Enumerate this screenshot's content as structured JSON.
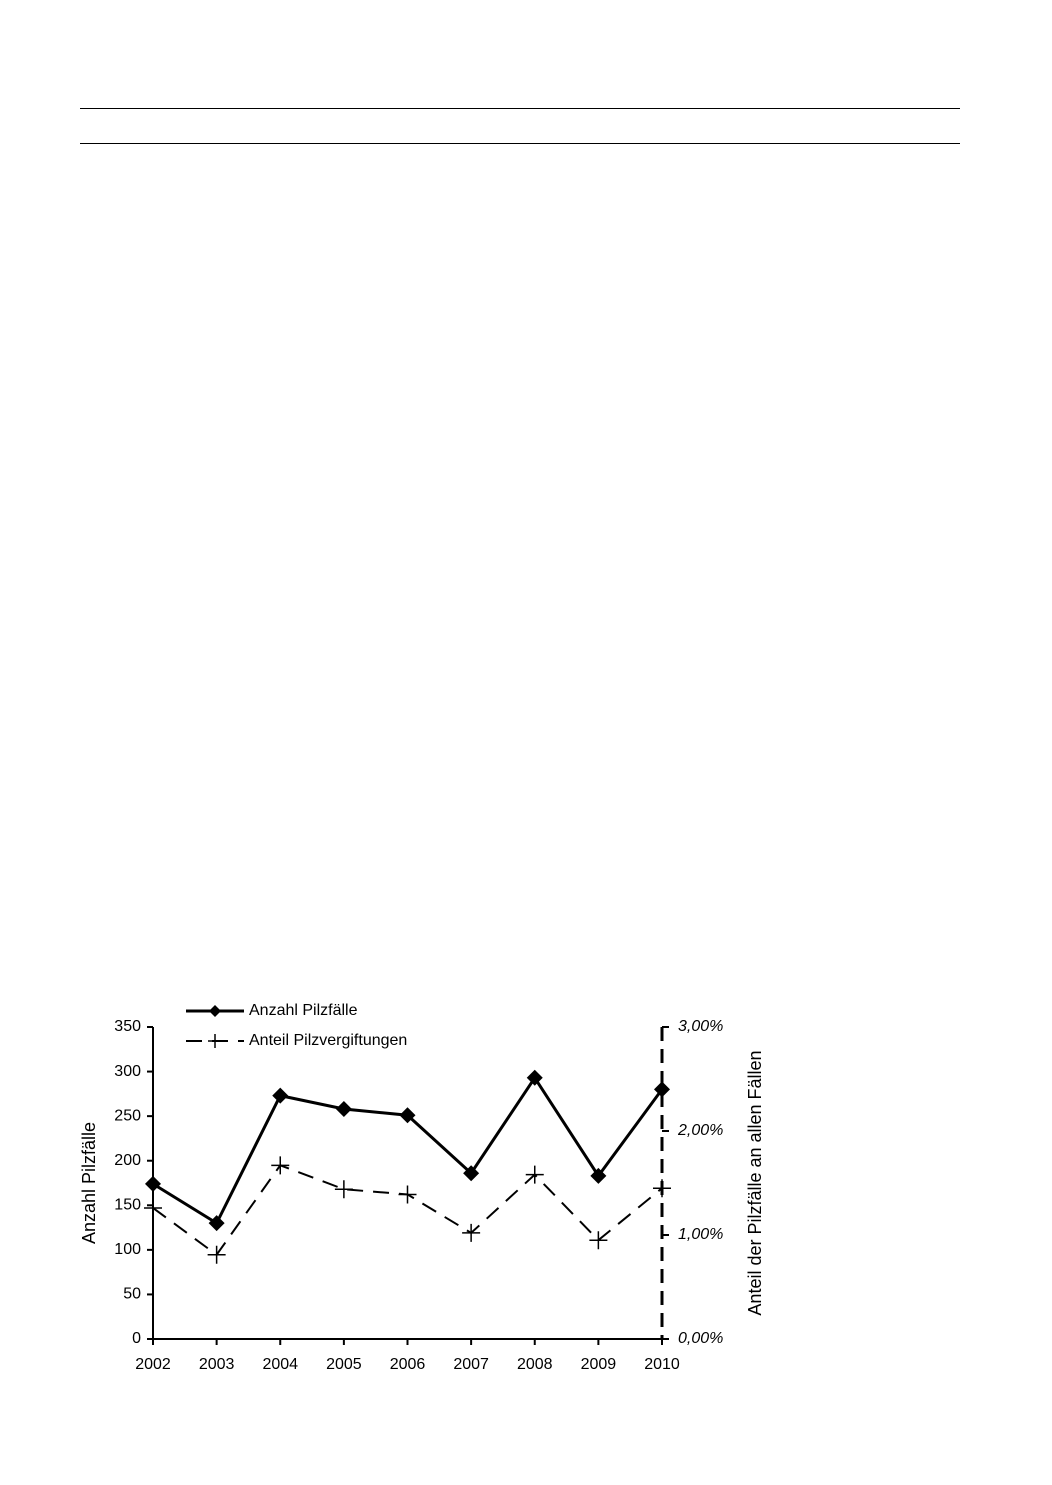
{
  "chart_data": {
    "type": "line",
    "categories": [
      "2002",
      "2003",
      "2004",
      "2005",
      "2006",
      "2007",
      "2008",
      "2009",
      "2010"
    ],
    "y_label": "Anzahl Pilzfälle",
    "y2_label": "Anteil der Pilzfälle an allen Fällen",
    "ylim": [
      0,
      350
    ],
    "yticks": [
      0,
      50,
      100,
      150,
      200,
      250,
      300,
      350
    ],
    "y2lim": [
      0,
      3
    ],
    "y2ticks": [
      {
        "value": 0,
        "label": "0,00%"
      },
      {
        "value": 1,
        "label": "1,00%"
      },
      {
        "value": 2,
        "label": "2,00%"
      },
      {
        "value": 3,
        "label": "3,00%"
      }
    ],
    "legend": "top-left",
    "series": [
      {
        "name": "Anzahl Pilzfälle",
        "color": "#000000",
        "marker": "diamond",
        "line_style": "solid",
        "values": [
          174,
          130,
          273,
          258,
          251,
          186,
          293,
          183,
          280
        ]
      },
      {
        "name": "Anteil Pilzvergiftungen",
        "color": "#000000",
        "marker": "plus",
        "line_style": "dashed",
        "axis": "y2",
        "values": [
          1.26,
          0.81,
          1.67,
          1.44,
          1.39,
          1.02,
          1.58,
          0.95,
          1.45
        ]
      }
    ]
  }
}
